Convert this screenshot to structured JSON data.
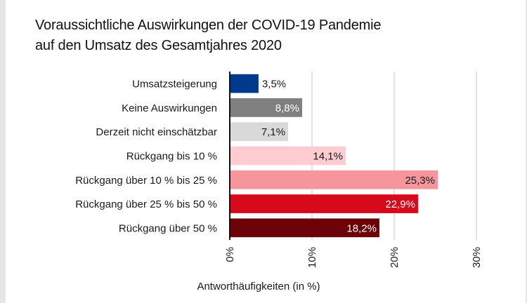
{
  "chart_data": {
    "type": "bar",
    "orientation": "horizontal",
    "title": "Voraussichtliche Auswirkungen der COVID-19 Pandemie auf den Umsatz des Gesamtjahres 2020",
    "title_lines": [
      "Voraussichtliche Auswirkungen der COVID-19 Pandemie",
      "auf den Umsatz des Gesamtjahres 2020"
    ],
    "categories": [
      "Umsatzsteigerung",
      "Keine Auswirkungen",
      "Derzeit nicht einschätzbar",
      "Rückgang bis 10 %",
      "Rückgang über 10 % bis 25 %",
      "Rückgang über 25 % bis 50 %",
      "Rückgang über 50 %"
    ],
    "values": [
      3.5,
      8.8,
      7.1,
      14.1,
      25.3,
      22.9,
      18.2
    ],
    "value_labels": [
      "3,5%",
      "8,8%",
      "7,1%",
      "14,1%",
      "25,3%",
      "22,9%",
      "18,2%"
    ],
    "colors": [
      "#003a8c",
      "#808080",
      "#d9d9d9",
      "#ffccd2",
      "#f6959c",
      "#d70a1b",
      "#6b0308"
    ],
    "label_colors": [
      "#1a1a1a",
      "#ffffff",
      "#1a1a1a",
      "#1a1a1a",
      "#1a1a1a",
      "#ffffff",
      "#ffffff"
    ],
    "label_inside": [
      false,
      true,
      true,
      true,
      true,
      true,
      true
    ],
    "xlabel": "Antworthäufigkeiten (in %)",
    "ylabel": "",
    "xlim": [
      0,
      30
    ],
    "xticks": [
      0,
      10,
      20,
      30
    ],
    "xtick_labels": [
      "0%",
      "10%",
      "20%",
      "30%"
    ],
    "grid": true,
    "legend": "none"
  }
}
